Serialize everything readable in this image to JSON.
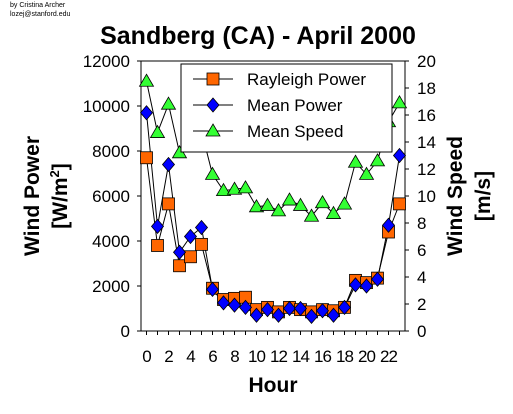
{
  "credit": {
    "line1": "by Cristina Archer",
    "line2": "lozej@stanford.edu"
  },
  "chart_data": {
    "type": "line",
    "title": "Sandberg (CA) - April 2000",
    "xlabel": "Hour",
    "ylabel_left": [
      "Wind Power",
      "[W/m",
      "2",
      "]"
    ],
    "ylabel_right": "Wind Speed [m/s]",
    "ylabel_right_lines": [
      "Wind Speed",
      "[m/s]"
    ],
    "x": [
      0,
      1,
      2,
      3,
      4,
      5,
      6,
      7,
      8,
      9,
      10,
      11,
      12,
      13,
      14,
      15,
      16,
      17,
      18,
      19,
      20,
      21,
      22,
      23
    ],
    "x_tick_labels": [
      "0",
      "2",
      "4",
      "6",
      "8",
      "10",
      "12",
      "14",
      "16",
      "18",
      "20",
      "22"
    ],
    "x_tick_values": [
      0,
      2,
      4,
      6,
      8,
      10,
      12,
      14,
      16,
      18,
      20,
      22
    ],
    "ylim_left": [
      0,
      12000
    ],
    "yticks_left": [
      0,
      2000,
      4000,
      6000,
      8000,
      10000,
      12000
    ],
    "ylim_right": [
      0,
      20
    ],
    "yticks_right": [
      0,
      2,
      4,
      6,
      8,
      10,
      12,
      14,
      16,
      18,
      20
    ],
    "grid": false,
    "legend_position": "top-right",
    "series": [
      {
        "name": "Rayleigh Power",
        "axis": "left",
        "marker": "square",
        "color": "#ff6600",
        "values": [
          7700,
          3800,
          5650,
          2900,
          3300,
          3850,
          1900,
          1400,
          1450,
          1500,
          950,
          1050,
          850,
          1050,
          950,
          850,
          950,
          900,
          1050,
          2250,
          2150,
          2350,
          4400,
          5650
        ]
      },
      {
        "name": "Mean Power",
        "axis": "left",
        "marker": "diamond",
        "color": "#0000ff",
        "values": [
          9700,
          4650,
          7400,
          3500,
          4200,
          4600,
          1850,
          1250,
          1150,
          1050,
          700,
          950,
          700,
          1000,
          1000,
          650,
          900,
          700,
          1050,
          2050,
          2000,
          2300,
          4700,
          7800
        ]
      },
      {
        "name": "Mean Speed",
        "axis": "right",
        "marker": "triangle",
        "color": "#33ff33",
        "values": [
          18.5,
          14.7,
          16.8,
          13.2,
          14.2,
          14.8,
          11.6,
          10.4,
          10.5,
          10.6,
          9.2,
          9.3,
          8.9,
          9.7,
          9.3,
          8.5,
          9.5,
          8.7,
          9.4,
          12.5,
          11.6,
          12.6,
          15.5,
          16.9
        ]
      }
    ]
  }
}
